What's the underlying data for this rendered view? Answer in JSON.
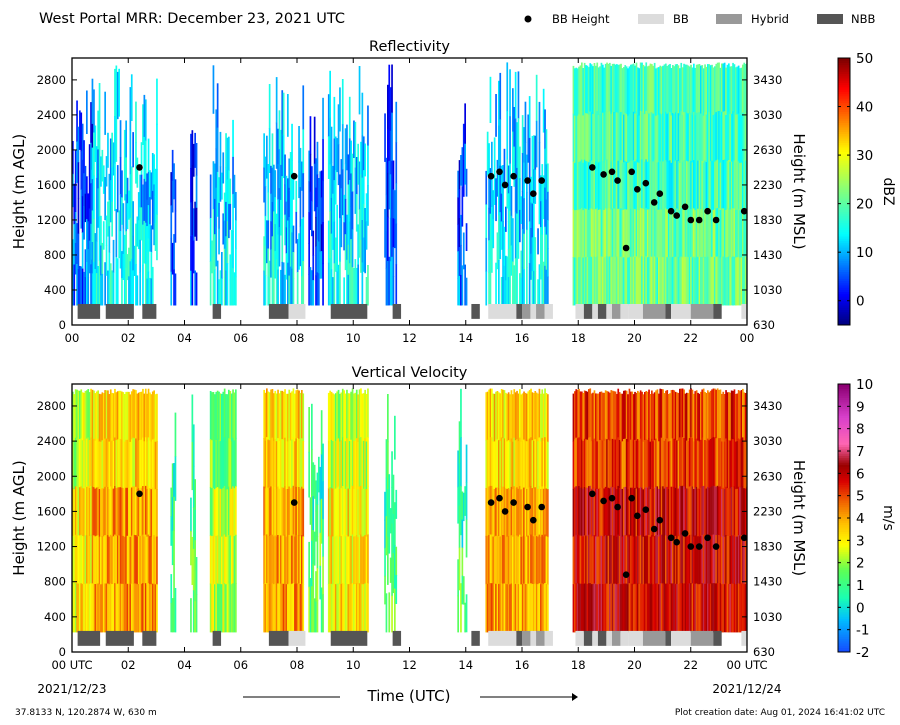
{
  "title": "West Portal MRR:  December 23, 2021 UTC",
  "legend": [
    {
      "label": "BB Height",
      "kind": "dot",
      "color": "#000000"
    },
    {
      "label": "BB",
      "kind": "box",
      "color": "#dcdcdc"
    },
    {
      "label": "Hybrid",
      "kind": "box",
      "color": "#999999"
    },
    {
      "label": "NBB",
      "kind": "box",
      "color": "#555555"
    }
  ],
  "footer": {
    "start_label": "00 UTC",
    "start_date": "2021/12/23",
    "end_label": "00 UTC",
    "end_date": "2021/12/24",
    "xlabel": "Time (UTC)",
    "location": "37.8133 N, 120.2874 W, 630 m",
    "created": "Plot creation date: Aug 01, 2024 16:41:02 UTC"
  },
  "chart_data": [
    {
      "type": "heatmap",
      "title": "Reflectivity",
      "ylabel": "Height (m AGL)",
      "ylabel_right": "Height (m MSL)",
      "x_ticks": [
        "00",
        "02",
        "04",
        "06",
        "08",
        "10",
        "12",
        "14",
        "16",
        "18",
        "20",
        "22",
        "00"
      ],
      "xlim": [
        0,
        24
      ],
      "ylim": [
        0,
        3050
      ],
      "y_ticks": [
        0,
        400,
        800,
        1200,
        1600,
        2000,
        2400,
        2800
      ],
      "y_ticks_right": [
        "630",
        "1030",
        "1430",
        "1830",
        "2230",
        "2630",
        "3030",
        "3430"
      ],
      "colorbar": {
        "label": "dBZ",
        "min": -5,
        "max": 50,
        "ticks": [
          0,
          10,
          20,
          30,
          40,
          50
        ]
      },
      "precip_periods": [
        [
          0,
          0.7,
          1
        ],
        [
          0.7,
          3,
          2
        ],
        [
          3.5,
          3.65,
          1
        ],
        [
          4.2,
          4.4,
          1
        ],
        [
          4.9,
          5.8,
          2
        ],
        [
          6.8,
          8.2,
          2
        ],
        [
          8.4,
          8.9,
          1
        ],
        [
          9.1,
          10.5,
          2
        ],
        [
          11.1,
          11.5,
          1
        ],
        [
          13.7,
          14.0,
          1
        ],
        [
          14.7,
          16.9,
          2
        ],
        [
          17.8,
          24.0,
          3
        ]
      ],
      "bb_height": [
        [
          2.4,
          1800
        ],
        [
          7.9,
          1700
        ],
        [
          14.9,
          1700
        ],
        [
          15.2,
          1750
        ],
        [
          15.4,
          1600
        ],
        [
          15.7,
          1700
        ],
        [
          16.2,
          1650
        ],
        [
          16.4,
          1500
        ],
        [
          16.7,
          1650
        ],
        [
          18.5,
          1800
        ],
        [
          18.9,
          1720
        ],
        [
          19.2,
          1750
        ],
        [
          19.4,
          1650
        ],
        [
          19.7,
          880
        ],
        [
          19.9,
          1750
        ],
        [
          20.1,
          1550
        ],
        [
          20.4,
          1620
        ],
        [
          20.7,
          1400
        ],
        [
          20.9,
          1500
        ],
        [
          21.3,
          1300
        ],
        [
          21.5,
          1250
        ],
        [
          21.8,
          1350
        ],
        [
          22.0,
          1200
        ],
        [
          22.3,
          1200
        ],
        [
          22.6,
          1300
        ],
        [
          22.9,
          1200
        ],
        [
          23.9,
          1300
        ]
      ],
      "bb_type_segments": [
        [
          0.2,
          1.0,
          "NBB"
        ],
        [
          1.2,
          2.2,
          "NBB"
        ],
        [
          2.5,
          3.0,
          "NBB"
        ],
        [
          5.0,
          5.3,
          "NBB"
        ],
        [
          7.0,
          7.7,
          "NBB"
        ],
        [
          7.7,
          8.3,
          "BB"
        ],
        [
          9.2,
          10.5,
          "NBB"
        ],
        [
          11.4,
          11.7,
          "NBB"
        ],
        [
          14.2,
          14.5,
          "NBB"
        ],
        [
          14.8,
          15.8,
          "BB"
        ],
        [
          15.8,
          16.0,
          "NBB"
        ],
        [
          16.0,
          16.3,
          "Hybrid"
        ],
        [
          16.3,
          16.5,
          "BB"
        ],
        [
          16.5,
          16.8,
          "Hybrid"
        ],
        [
          16.8,
          17.1,
          "BB"
        ],
        [
          17.9,
          18.2,
          "BB"
        ],
        [
          18.2,
          18.5,
          "NBB"
        ],
        [
          18.5,
          18.7,
          "BB"
        ],
        [
          18.7,
          19.0,
          "NBB"
        ],
        [
          19.0,
          19.2,
          "BB"
        ],
        [
          19.2,
          19.5,
          "Hybrid"
        ],
        [
          19.5,
          19.8,
          "BB"
        ],
        [
          19.8,
          20.3,
          "BB"
        ],
        [
          20.3,
          21.1,
          "Hybrid"
        ],
        [
          21.1,
          21.3,
          "NBB"
        ],
        [
          21.3,
          21.6,
          "BB"
        ],
        [
          21.6,
          22.0,
          "BB"
        ],
        [
          22.0,
          22.8,
          "Hybrid"
        ],
        [
          22.8,
          23.1,
          "NBB"
        ],
        [
          23.8,
          24.0,
          "BB"
        ]
      ]
    },
    {
      "type": "heatmap",
      "title": "Vertical Velocity",
      "ylabel": "Height (m AGL)",
      "ylabel_right": "Height (m MSL)",
      "x_ticks": [
        "00 UTC",
        "02",
        "04",
        "06",
        "08",
        "10",
        "12",
        "14",
        "16",
        "18",
        "20",
        "22",
        "00 UTC"
      ],
      "xlim": [
        0,
        24
      ],
      "ylim": [
        0,
        3050
      ],
      "y_ticks": [
        0,
        400,
        800,
        1200,
        1600,
        2000,
        2400,
        2800
      ],
      "y_ticks_right": [
        "630",
        "1030",
        "1430",
        "1830",
        "2230",
        "2630",
        "3030",
        "3430"
      ],
      "colorbar": {
        "label": "m/s",
        "min": -2,
        "max": 10,
        "ticks": [
          -2,
          -1,
          0,
          1,
          2,
          3,
          4,
          5,
          6,
          7,
          8,
          9,
          10
        ]
      },
      "precip_periods": [
        [
          0,
          0.7,
          4
        ],
        [
          0.7,
          3,
          5
        ],
        [
          3.5,
          3.65,
          2
        ],
        [
          4.2,
          4.4,
          2
        ],
        [
          4.9,
          5.8,
          3
        ],
        [
          6.8,
          8.2,
          5
        ],
        [
          8.4,
          8.9,
          2
        ],
        [
          9.1,
          10.5,
          4
        ],
        [
          11.1,
          11.5,
          2
        ],
        [
          13.7,
          14.0,
          2
        ],
        [
          14.7,
          16.9,
          5
        ],
        [
          17.8,
          24.0,
          7
        ]
      ],
      "bb_height": [
        [
          2.4,
          1800
        ],
        [
          7.9,
          1700
        ],
        [
          14.9,
          1700
        ],
        [
          15.2,
          1750
        ],
        [
          15.4,
          1600
        ],
        [
          15.7,
          1700
        ],
        [
          16.2,
          1650
        ],
        [
          16.4,
          1500
        ],
        [
          16.7,
          1650
        ],
        [
          18.5,
          1800
        ],
        [
          18.9,
          1720
        ],
        [
          19.2,
          1750
        ],
        [
          19.4,
          1650
        ],
        [
          19.7,
          880
        ],
        [
          19.9,
          1750
        ],
        [
          20.1,
          1550
        ],
        [
          20.4,
          1620
        ],
        [
          20.7,
          1400
        ],
        [
          20.9,
          1500
        ],
        [
          21.3,
          1300
        ],
        [
          21.5,
          1250
        ],
        [
          21.8,
          1350
        ],
        [
          22.0,
          1200
        ],
        [
          22.3,
          1200
        ],
        [
          22.6,
          1300
        ],
        [
          22.9,
          1200
        ],
        [
          23.9,
          1300
        ]
      ],
      "bb_type_segments": [
        [
          0.2,
          1.0,
          "NBB"
        ],
        [
          1.2,
          2.2,
          "NBB"
        ],
        [
          2.5,
          3.0,
          "NBB"
        ],
        [
          5.0,
          5.3,
          "NBB"
        ],
        [
          7.0,
          7.7,
          "NBB"
        ],
        [
          7.7,
          8.3,
          "BB"
        ],
        [
          9.2,
          10.5,
          "NBB"
        ],
        [
          11.4,
          11.7,
          "NBB"
        ],
        [
          14.2,
          14.5,
          "NBB"
        ],
        [
          14.8,
          15.8,
          "BB"
        ],
        [
          15.8,
          16.0,
          "NBB"
        ],
        [
          16.0,
          16.3,
          "Hybrid"
        ],
        [
          16.3,
          16.5,
          "BB"
        ],
        [
          16.5,
          16.8,
          "Hybrid"
        ],
        [
          16.8,
          17.1,
          "BB"
        ],
        [
          17.9,
          18.2,
          "BB"
        ],
        [
          18.2,
          18.5,
          "NBB"
        ],
        [
          18.5,
          18.7,
          "BB"
        ],
        [
          18.7,
          19.0,
          "NBB"
        ],
        [
          19.0,
          19.2,
          "BB"
        ],
        [
          19.2,
          19.5,
          "Hybrid"
        ],
        [
          19.5,
          19.8,
          "BB"
        ],
        [
          19.8,
          20.3,
          "BB"
        ],
        [
          20.3,
          21.1,
          "Hybrid"
        ],
        [
          21.1,
          21.3,
          "NBB"
        ],
        [
          21.3,
          21.6,
          "BB"
        ],
        [
          21.6,
          22.0,
          "BB"
        ],
        [
          22.0,
          22.8,
          "Hybrid"
        ],
        [
          22.8,
          23.1,
          "NBB"
        ],
        [
          23.8,
          24.0,
          "BB"
        ]
      ]
    }
  ]
}
